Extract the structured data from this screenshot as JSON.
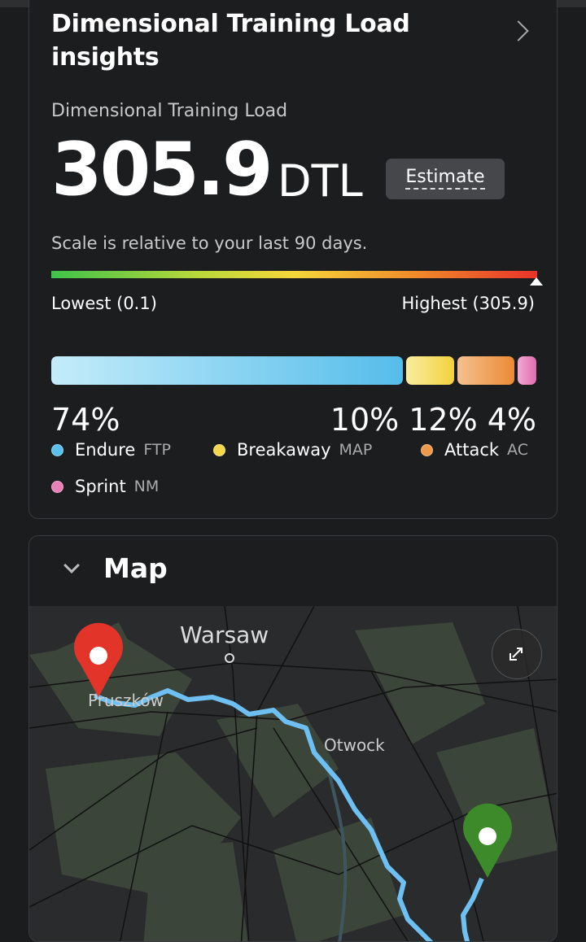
{
  "insights": {
    "title": "Dimensional Training Load insights",
    "subtitle": "Dimensional Training Load",
    "value": "305.9",
    "unit": "DTL",
    "estimate_label": "Estimate",
    "scale_note": "Scale is relative to your last 90 days.",
    "lowest": "Lowest (0.1)",
    "highest": "Highest (305.9)",
    "distribution": [
      {
        "label": "Endure",
        "sub": "FTP",
        "percent": "74%",
        "value": 74,
        "color": "#5bc0ec"
      },
      {
        "label": "Breakaway",
        "sub": "MAP",
        "percent": "10%",
        "value": 10,
        "color": "#f5d84a"
      },
      {
        "label": "Attack",
        "sub": "AC",
        "percent": "12%",
        "value": 12,
        "color": "#ef9a4a"
      },
      {
        "label": "Sprint",
        "sub": "NM",
        "percent": "4%",
        "value": 4,
        "color": "#e77fb9"
      }
    ]
  },
  "map": {
    "title": "Map",
    "labels": {
      "city": "Warsaw",
      "town1": "Pruszków",
      "town2": "Otwock"
    }
  }
}
